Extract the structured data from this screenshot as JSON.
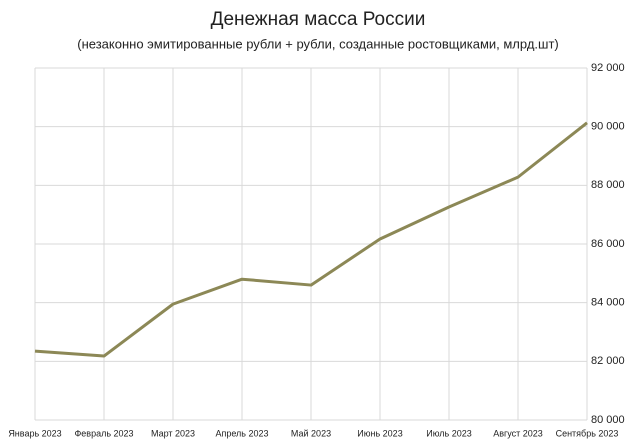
{
  "chart_data": {
    "type": "line",
    "title": "Денежная масса России",
    "subtitle": "(незаконно эмитированные рубли + рубли, созданные ростовщиками, млрд.шт)",
    "categories": [
      "Январь 2023",
      "Февраль 2023",
      "Март 2023",
      "Апрель 2023",
      "Май 2023",
      "Июнь 2023",
      "Июль 2023",
      "Август 2023",
      "Сентябрь 2023"
    ],
    "series": [
      {
        "name": "Денежная масса",
        "color": "#8c8856",
        "values": [
          82350,
          82180,
          83950,
          84800,
          84600,
          86170,
          87260,
          88280,
          90130
        ]
      }
    ],
    "ylim": [
      80000,
      92000
    ],
    "yticks": [
      {
        "value": 80000,
        "label": "80 000"
      },
      {
        "value": 82000,
        "label": "82 000"
      },
      {
        "value": 84000,
        "label": "84 000"
      },
      {
        "value": 86000,
        "label": "86 000"
      },
      {
        "value": 88000,
        "label": "88 000"
      },
      {
        "value": 90000,
        "label": "90 000"
      },
      {
        "value": 92000,
        "label": "92 000"
      }
    ],
    "grid": true,
    "y_axis_side": "right"
  }
}
